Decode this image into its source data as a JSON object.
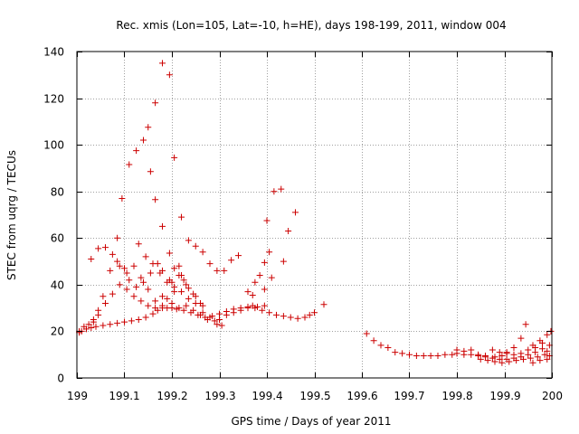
{
  "chart_data": {
    "type": "scatter",
    "title": "Rec. xmis (Lon=105, Lat=-10, h=HE), days 198-199, 2011, window 004",
    "xlabel": "GPS time / Days of year 2011",
    "ylabel": "STEC from uqrg / TECUs",
    "xlim": [
      199,
      200
    ],
    "ylim": [
      0,
      140
    ],
    "grid": true,
    "marker": "+",
    "color": "#cc0000",
    "x_ticks": [
      199,
      199.1,
      199.2,
      199.3,
      199.4,
      199.5,
      199.6,
      199.7,
      199.8,
      199.9,
      200
    ],
    "x_tick_labels": [
      "199",
      "199.1",
      "199.2",
      "199.3",
      "199.4",
      "199.5",
      "199.6",
      "199.7",
      "199.8",
      "199.9",
      "200"
    ],
    "y_ticks": [
      0,
      20,
      40,
      60,
      80,
      100,
      120,
      140
    ],
    "y_tick_labels": [
      "0",
      "20",
      "40",
      "60",
      "80",
      "100",
      "120",
      "140"
    ],
    "series": [
      {
        "name": "STEC",
        "points": [
          [
            199.005,
            19.5
          ],
          [
            199.01,
            20
          ],
          [
            199.02,
            21
          ],
          [
            199.03,
            21.5
          ],
          [
            199.04,
            22
          ],
          [
            199.055,
            22.5
          ],
          [
            199.07,
            23
          ],
          [
            199.085,
            23.5
          ],
          [
            199.1,
            24
          ],
          [
            199.115,
            24.5
          ],
          [
            199.13,
            25
          ],
          [
            199.145,
            26
          ],
          [
            199.16,
            27.5
          ],
          [
            199.17,
            29
          ],
          [
            199.18,
            30
          ],
          [
            199.19,
            30
          ],
          [
            199.2,
            30
          ],
          [
            199.21,
            29.5
          ],
          [
            199.225,
            29
          ],
          [
            199.24,
            28
          ],
          [
            199.255,
            27
          ],
          [
            199.27,
            26
          ],
          [
            199.285,
            26.5
          ],
          [
            199.3,
            27.5
          ],
          [
            199.315,
            28.5
          ],
          [
            199.33,
            29.5
          ],
          [
            199.345,
            30
          ],
          [
            199.36,
            30.5
          ],
          [
            199.375,
            30
          ],
          [
            199.39,
            29
          ],
          [
            199.405,
            28
          ],
          [
            199.42,
            27
          ],
          [
            199.435,
            26.5
          ],
          [
            199.45,
            26
          ],
          [
            199.465,
            25.5
          ],
          [
            199.48,
            26
          ],
          [
            199.49,
            27
          ],
          [
            199.5,
            28
          ],
          [
            199.52,
            31.5
          ],
          [
            199.005,
            20
          ],
          [
            199.015,
            22
          ],
          [
            199.025,
            23
          ],
          [
            199.035,
            25
          ],
          [
            199.045,
            27
          ],
          [
            199.06,
            32
          ],
          [
            199.075,
            36
          ],
          [
            199.09,
            40
          ],
          [
            199.105,
            45
          ],
          [
            199.12,
            48
          ],
          [
            199.135,
            43
          ],
          [
            199.15,
            38
          ],
          [
            199.165,
            33
          ],
          [
            199.18,
            35
          ],
          [
            199.19,
            34
          ],
          [
            199.2,
            32
          ],
          [
            199.215,
            30
          ],
          [
            199.23,
            31
          ],
          [
            199.245,
            29
          ],
          [
            199.26,
            27
          ],
          [
            199.275,
            25
          ],
          [
            199.29,
            24.5
          ],
          [
            199.3,
            25
          ],
          [
            199.315,
            27
          ],
          [
            199.33,
            28
          ],
          [
            199.345,
            29
          ],
          [
            199.36,
            30
          ],
          [
            199.37,
            31
          ],
          [
            199.38,
            30.5
          ],
          [
            199.395,
            31
          ],
          [
            199.035,
            24
          ],
          [
            199.045,
            29
          ],
          [
            199.055,
            35
          ],
          [
            199.07,
            46
          ],
          [
            199.085,
            50
          ],
          [
            199.1,
            47
          ],
          [
            199.11,
            42
          ],
          [
            199.125,
            39
          ],
          [
            199.14,
            41
          ],
          [
            199.155,
            45
          ],
          [
            199.17,
            49
          ],
          [
            199.18,
            46
          ],
          [
            199.195,
            42
          ],
          [
            199.205,
            39
          ],
          [
            199.22,
            37
          ],
          [
            199.235,
            34
          ],
          [
            199.25,
            32
          ],
          [
            199.265,
            28
          ],
          [
            199.28,
            26
          ],
          [
            199.295,
            23
          ],
          [
            199.305,
            22.5
          ],
          [
            199.03,
            51
          ],
          [
            199.045,
            55.5
          ],
          [
            199.06,
            56
          ],
          [
            199.075,
            53
          ],
          [
            199.09,
            48
          ],
          [
            199.105,
            38
          ],
          [
            199.12,
            35
          ],
          [
            199.135,
            33
          ],
          [
            199.15,
            31
          ],
          [
            199.165,
            30
          ],
          [
            199.18,
            31
          ],
          [
            199.2,
            41
          ],
          [
            199.215,
            44
          ],
          [
            199.23,
            40
          ],
          [
            199.245,
            36
          ],
          [
            199.26,
            32
          ],
          [
            199.085,
            60
          ],
          [
            199.095,
            77
          ],
          [
            199.11,
            91.5
          ],
          [
            199.125,
            97.5
          ],
          [
            199.14,
            102
          ],
          [
            199.15,
            107.5
          ],
          [
            199.165,
            118
          ],
          [
            199.18,
            135
          ],
          [
            199.195,
            130
          ],
          [
            199.205,
            94.5
          ],
          [
            199.215,
            48
          ],
          [
            199.225,
            42
          ],
          [
            199.155,
            88.5
          ],
          [
            199.165,
            76.5
          ],
          [
            199.18,
            65
          ],
          [
            199.195,
            53.5
          ],
          [
            199.205,
            47
          ],
          [
            199.22,
            44
          ],
          [
            199.235,
            38.5
          ],
          [
            199.25,
            35
          ],
          [
            199.265,
            31
          ],
          [
            199.13,
            57.5
          ],
          [
            199.145,
            52
          ],
          [
            199.16,
            49
          ],
          [
            199.175,
            45
          ],
          [
            199.19,
            41
          ],
          [
            199.205,
            37
          ],
          [
            199.22,
            69
          ],
          [
            199.235,
            59
          ],
          [
            199.25,
            56.5
          ],
          [
            199.265,
            54
          ],
          [
            199.28,
            49
          ],
          [
            199.295,
            46
          ],
          [
            199.31,
            46
          ],
          [
            199.325,
            50.5
          ],
          [
            199.34,
            52.5
          ],
          [
            199.36,
            37
          ],
          [
            199.375,
            41
          ],
          [
            199.385,
            44
          ],
          [
            199.395,
            49.5
          ],
          [
            199.405,
            54
          ],
          [
            199.4,
            67.5
          ],
          [
            199.415,
            80
          ],
          [
            199.43,
            81
          ],
          [
            199.445,
            63
          ],
          [
            199.46,
            71
          ],
          [
            199.435,
            50
          ],
          [
            199.41,
            43
          ],
          [
            199.395,
            38
          ],
          [
            199.37,
            35.5
          ],
          [
            199.61,
            19
          ],
          [
            199.625,
            16
          ],
          [
            199.64,
            14
          ],
          [
            199.655,
            13
          ],
          [
            199.67,
            11
          ],
          [
            199.685,
            10.5
          ],
          [
            199.7,
            10
          ],
          [
            199.715,
            9.5
          ],
          [
            199.73,
            9.5
          ],
          [
            199.745,
            9.5
          ],
          [
            199.76,
            9.5
          ],
          [
            199.775,
            10
          ],
          [
            199.79,
            10
          ],
          [
            199.8,
            10.5
          ],
          [
            199.815,
            10
          ],
          [
            199.83,
            10
          ],
          [
            199.845,
            9.5
          ],
          [
            199.86,
            9
          ],
          [
            199.875,
            8.5
          ],
          [
            199.89,
            8
          ],
          [
            199.905,
            8
          ],
          [
            199.92,
            8.5
          ],
          [
            199.935,
            9
          ],
          [
            199.95,
            10
          ],
          [
            199.965,
            11
          ],
          [
            199.98,
            12.5
          ],
          [
            199.995,
            14
          ],
          [
            199.8,
            12
          ],
          [
            199.815,
            11.5
          ],
          [
            199.83,
            12
          ],
          [
            199.845,
            10
          ],
          [
            199.86,
            9.5
          ],
          [
            199.875,
            12
          ],
          [
            199.89,
            11
          ],
          [
            199.905,
            10.5
          ],
          [
            199.92,
            13
          ],
          [
            199.935,
            17
          ],
          [
            199.945,
            23
          ],
          [
            199.96,
            14
          ],
          [
            199.975,
            16
          ],
          [
            199.99,
            18.5
          ],
          [
            199.998,
            20
          ],
          [
            199.85,
            8
          ],
          [
            199.865,
            7.5
          ],
          [
            199.88,
            7
          ],
          [
            199.895,
            6.5
          ],
          [
            199.91,
            7
          ],
          [
            199.925,
            7.5
          ],
          [
            199.94,
            8
          ],
          [
            199.955,
            8.5
          ],
          [
            199.97,
            9
          ],
          [
            199.985,
            10
          ],
          [
            199.995,
            9.5
          ],
          [
            199.88,
            9
          ],
          [
            199.895,
            9.5
          ],
          [
            199.905,
            11
          ],
          [
            199.92,
            10
          ],
          [
            199.935,
            10.5
          ],
          [
            199.95,
            12
          ],
          [
            199.965,
            13
          ],
          [
            199.98,
            15
          ],
          [
            199.99,
            11.5
          ],
          [
            199.96,
            6.5
          ],
          [
            199.975,
            7.5
          ],
          [
            199.99,
            8
          ]
        ]
      }
    ]
  }
}
